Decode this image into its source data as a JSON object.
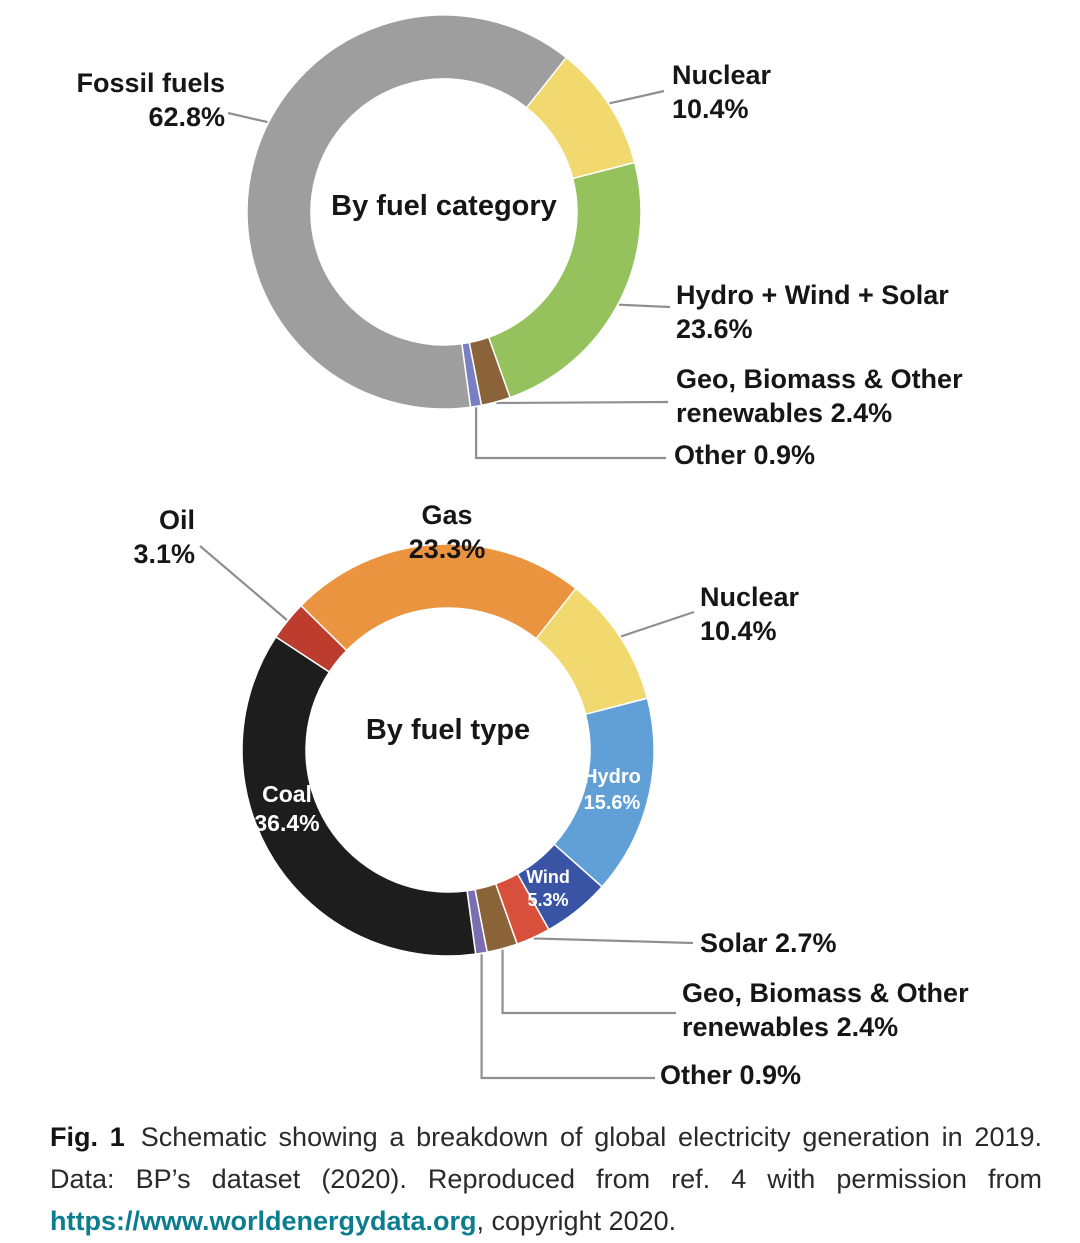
{
  "page": {
    "background": "#ffffff"
  },
  "chart_data": [
    {
      "type": "pie",
      "subtype": "donut",
      "title": "By fuel category",
      "units": "%",
      "start_angle_deg": 38,
      "slices": [
        {
          "label": "Nuclear",
          "value": 10.4,
          "color": "#f2d96f"
        },
        {
          "label": "Hydro + Wind + Solar",
          "value": 23.6,
          "color": "#96c25d"
        },
        {
          "label": "Geo, Biomass & Other renewables",
          "value": 2.4,
          "color": "#8a6339"
        },
        {
          "label": "Other",
          "value": 0.9,
          "color": "#7880c2"
        },
        {
          "label": "Fossil fuels",
          "value": 62.8,
          "color": "#9e9e9e"
        }
      ]
    },
    {
      "type": "pie",
      "subtype": "donut",
      "title": "By fuel type",
      "units": "%",
      "start_angle_deg": 38,
      "slices": [
        {
          "label": "Nuclear",
          "value": 10.4,
          "color": "#f2d96f"
        },
        {
          "label": "Hydro",
          "value": 15.6,
          "color": "#60a0d6"
        },
        {
          "label": "Wind",
          "value": 5.3,
          "color": "#3954a5"
        },
        {
          "label": "Solar",
          "value": 2.7,
          "color": "#d8503c"
        },
        {
          "label": "Geo, Biomass & Other renewables",
          "value": 2.4,
          "color": "#8a6339"
        },
        {
          "label": "Other",
          "value": 0.9,
          "color": "#7b6db0"
        },
        {
          "label": "Coal",
          "value": 36.4,
          "color": "#1d1d1d"
        },
        {
          "label": "Oil",
          "value": 3.1,
          "color": "#bc3c2d"
        },
        {
          "label": "Gas",
          "value": 23.3,
          "color": "#eb943f"
        }
      ]
    }
  ],
  "labels": {
    "top": {
      "fossil": {
        "name": "Fossil fuels",
        "pct": "62.8%"
      },
      "nuclear": {
        "name": "Nuclear",
        "pct": "10.4%"
      },
      "hws": {
        "name": "Hydro + Wind + Solar",
        "pct": "23.6%"
      },
      "geo": {
        "name": "Geo, Biomass & Other",
        "pct": "renewables 2.4%"
      },
      "other": {
        "text": "Other 0.9%"
      }
    },
    "bottom": {
      "oil": {
        "name": "Oil",
        "pct": "3.1%"
      },
      "gas": {
        "name": "Gas",
        "pct": "23.3%"
      },
      "nuclear": {
        "name": "Nuclear",
        "pct": "10.4%"
      },
      "hydro": {
        "name": "Hydro",
        "pct": "15.6%"
      },
      "wind": {
        "name": "Wind",
        "pct": "5.3%"
      },
      "coal": {
        "name": "Coal",
        "pct": "36.4%"
      },
      "solar": {
        "text": "Solar 2.7%"
      },
      "geo": {
        "name": "Geo, Biomass & Other",
        "pct": "renewables 2.4%"
      },
      "other": {
        "text": "Other 0.9%"
      }
    }
  },
  "caption": {
    "label": "Fig. 1",
    "text": "Schematic showing a breakdown of global electricity generation in 2019. Data: BP’s dataset (2020). Reproduced from ref. 4 with permission from ",
    "link": "https://www.worldenergydata.org",
    "suffix": ", copyright 2020.",
    "link_color": "#0c7d8f",
    "leader_line_color": "#8f8f8f"
  }
}
